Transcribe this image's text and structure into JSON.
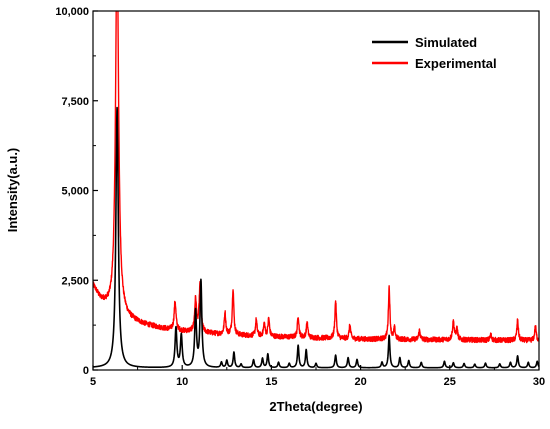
{
  "chart_data": {
    "type": "line",
    "title": "",
    "xlabel": "2Theta(degree)",
    "ylabel": "Intensity(a.u.)",
    "xlim": [
      5,
      30
    ],
    "ylim": [
      0,
      10000
    ],
    "x_ticks": [
      5,
      10,
      15,
      20,
      25,
      30
    ],
    "y_ticks": [
      0,
      2500,
      5000,
      7500,
      10000
    ],
    "y_tick_labels": [
      "0",
      "2,500",
      "5,000",
      "7,500",
      "10,000"
    ],
    "grid": false,
    "legend_position": "top-right",
    "series": [
      {
        "name": "Simulated",
        "color": "#000000",
        "baseline": 60,
        "peaks": [
          [
            6.35,
            7250,
            0.08
          ],
          [
            9.65,
            1100,
            0.06
          ],
          [
            9.95,
            900,
            0.06
          ],
          [
            10.75,
            1550,
            0.06
          ],
          [
            11.05,
            2400,
            0.06
          ],
          [
            12.2,
            150,
            0.05
          ],
          [
            12.5,
            200,
            0.05
          ],
          [
            12.9,
            430,
            0.05
          ],
          [
            13.3,
            100,
            0.05
          ],
          [
            14.0,
            220,
            0.05
          ],
          [
            14.5,
            260,
            0.05
          ],
          [
            14.8,
            380,
            0.05
          ],
          [
            15.4,
            150,
            0.05
          ],
          [
            16.0,
            120,
            0.05
          ],
          [
            16.5,
            620,
            0.05
          ],
          [
            16.95,
            500,
            0.05
          ],
          [
            17.5,
            120,
            0.05
          ],
          [
            18.6,
            350,
            0.05
          ],
          [
            19.3,
            280,
            0.05
          ],
          [
            19.8,
            230,
            0.05
          ],
          [
            21.2,
            150,
            0.05
          ],
          [
            21.6,
            900,
            0.05
          ],
          [
            22.2,
            280,
            0.05
          ],
          [
            22.7,
            200,
            0.05
          ],
          [
            23.4,
            150,
            0.05
          ],
          [
            24.7,
            180,
            0.05
          ],
          [
            25.2,
            140,
            0.05
          ],
          [
            25.8,
            120,
            0.05
          ],
          [
            26.4,
            100,
            0.05
          ],
          [
            27.0,
            130,
            0.05
          ],
          [
            27.8,
            110,
            0.05
          ],
          [
            28.4,
            150,
            0.05
          ],
          [
            28.8,
            330,
            0.05
          ],
          [
            29.4,
            150,
            0.05
          ],
          [
            29.9,
            180,
            0.05
          ]
        ]
      },
      {
        "name": "Experimental",
        "color": "#ff0000",
        "background": [
          [
            5.0,
            2350
          ],
          [
            5.4,
            1950
          ],
          [
            6.0,
            1650
          ],
          [
            7.0,
            1400
          ],
          [
            8.0,
            1250
          ],
          [
            9.0,
            1150
          ],
          [
            10.0,
            1080
          ],
          [
            11.0,
            1050
          ],
          [
            12.0,
            1000
          ],
          [
            14.0,
            950
          ],
          [
            17.0,
            900
          ],
          [
            20.0,
            860
          ],
          [
            25.0,
            840
          ],
          [
            30.0,
            820
          ]
        ],
        "noise": 70,
        "peaks": [
          [
            6.35,
            10500,
            0.1
          ],
          [
            9.6,
            800,
            0.06
          ],
          [
            10.75,
            900,
            0.06
          ],
          [
            11.0,
            1300,
            0.06
          ],
          [
            12.4,
            600,
            0.05
          ],
          [
            12.85,
            1300,
            0.05
          ],
          [
            14.15,
            450,
            0.05
          ],
          [
            14.6,
            350,
            0.05
          ],
          [
            14.85,
            500,
            0.05
          ],
          [
            16.5,
            600,
            0.05
          ],
          [
            17.0,
            420,
            0.05
          ],
          [
            18.6,
            1050,
            0.05
          ],
          [
            19.4,
            380,
            0.05
          ],
          [
            21.6,
            1450,
            0.05
          ],
          [
            21.9,
            300,
            0.05
          ],
          [
            23.3,
            250,
            0.05
          ],
          [
            25.2,
            500,
            0.06
          ],
          [
            25.4,
            300,
            0.05
          ],
          [
            27.3,
            150,
            0.05
          ],
          [
            28.8,
            550,
            0.05
          ],
          [
            29.8,
            400,
            0.05
          ]
        ]
      }
    ]
  }
}
